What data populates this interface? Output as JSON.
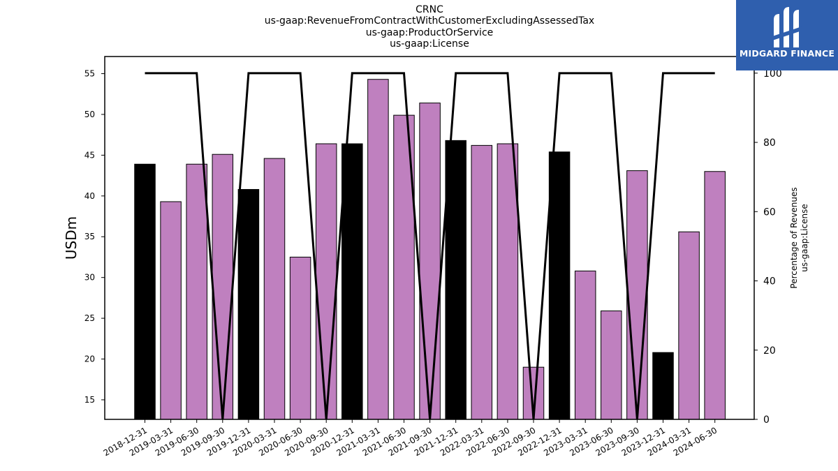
{
  "title_lines": [
    "CRNC",
    "us-gaap:RevenueFromContractWithCustomerExcludingAssessedTax",
    "us-gaap:ProductOrService",
    "us-gaap:License"
  ],
  "logo": {
    "text": "MIDGARD FINANCE",
    "bg_color": "#2f5fae"
  },
  "chart_data": {
    "type": "bar",
    "ylabel": "USDm",
    "y2label_lines": [
      "Percentage of Revenues",
      "us-gaap:License"
    ],
    "ylim": [
      12.6,
      57.1
    ],
    "y2lim": [
      0,
      104.8
    ],
    "yticks": [
      15,
      20,
      25,
      30,
      35,
      40,
      45,
      50,
      55
    ],
    "y2ticks": [
      0,
      20,
      40,
      60,
      80,
      100
    ],
    "colors": {
      "bar_default": "#bf80bf",
      "bar_highlight": "#000000",
      "line": "#000000"
    },
    "categories": [
      "2018-12-31",
      "2019-03-31",
      "2019-06-30",
      "2019-09-30",
      "2019-12-31",
      "2020-03-31",
      "2020-06-30",
      "2020-09-30",
      "2020-12-31",
      "2021-03-31",
      "2021-06-30",
      "2021-09-30",
      "2021-12-31",
      "2022-03-31",
      "2022-06-30",
      "2022-09-30",
      "2022-12-31",
      "2023-03-31",
      "2023-06-30",
      "2023-09-30",
      "2023-12-31",
      "2024-03-31",
      "2024-06-30"
    ],
    "series": [
      {
        "type": "bar",
        "values": [
          43.9,
          39.3,
          43.9,
          45.1,
          40.8,
          44.6,
          32.5,
          46.4,
          46.4,
          54.3,
          49.9,
          51.4,
          46.8,
          46.2,
          46.4,
          19.0,
          45.4,
          30.8,
          25.9,
          43.1,
          20.8,
          35.6,
          43.0
        ],
        "highlight": [
          true,
          false,
          false,
          false,
          true,
          false,
          false,
          false,
          true,
          false,
          false,
          false,
          true,
          false,
          false,
          false,
          true,
          false,
          false,
          false,
          true,
          false,
          false
        ]
      },
      {
        "type": "line",
        "axis": "right",
        "values": [
          100,
          100,
          100,
          0,
          100,
          100,
          100,
          0,
          100,
          100,
          100,
          0,
          100,
          100,
          100,
          0,
          100,
          100,
          100,
          0,
          100,
          100,
          100
        ]
      }
    ]
  }
}
